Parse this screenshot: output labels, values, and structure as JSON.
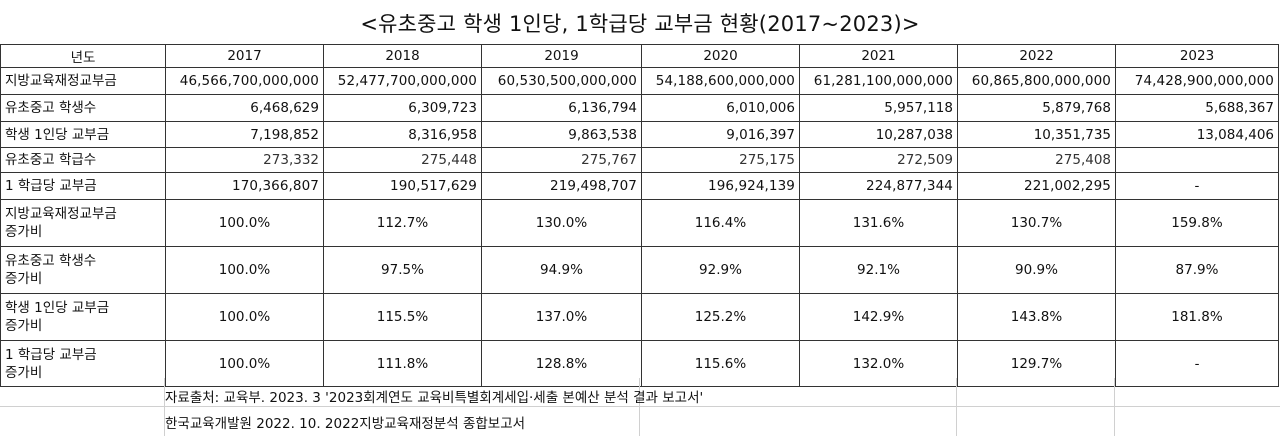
{
  "title": "<유초중고 학생 1인당, 1학급당 교부금 현황(2017~2023)>",
  "header": {
    "label": "년도",
    "years": [
      "2017",
      "2018",
      "2019",
      "2020",
      "2021",
      "2022",
      "2023"
    ]
  },
  "rows": [
    {
      "label": "지방교육재정교부금",
      "values": [
        "46,566,700,000,000",
        "52,477,700,000,000",
        "60,530,500,000,000",
        "54,188,600,000,000",
        "61,281,100,000,000",
        "60,865,800,000,000",
        "74,428,900,000,000"
      ]
    },
    {
      "label": "유초중고 학생수",
      "values": [
        "6,468,629",
        "6,309,723",
        "6,136,794",
        "6,010,006",
        "5,957,118",
        "5,879,768",
        "5,688,367"
      ]
    },
    {
      "label": "학생 1인당 교부금",
      "values": [
        "7,198,852",
        "8,316,958",
        "9,863,538",
        "9,016,397",
        "10,287,038",
        "10,351,735",
        "13,084,406"
      ]
    },
    {
      "label": "유초중고 학급수",
      "values": [
        "273,332",
        "275,448",
        "275,767",
        "275,175",
        "272,509",
        "275,408",
        ""
      ]
    },
    {
      "label": "1 학급당 교부금",
      "values": [
        "170,366,807",
        "190,517,629",
        "219,498,707",
        "196,924,139",
        "224,877,344",
        "221,002,295",
        "-"
      ]
    },
    {
      "label_line1": "지방교육재정교부금",
      "label_line2": "증가비",
      "values": [
        "100.0%",
        "112.7%",
        "130.0%",
        "116.4%",
        "131.6%",
        "130.7%",
        "159.8%"
      ]
    },
    {
      "label_line1": "유초중고 학생수",
      "label_line2": "증가비",
      "values": [
        "100.0%",
        "97.5%",
        "94.9%",
        "92.9%",
        "92.1%",
        "90.9%",
        "87.9%"
      ]
    },
    {
      "label_line1": "학생 1인당 교부금",
      "label_line2": "증가비",
      "values": [
        "100.0%",
        "115.5%",
        "137.0%",
        "125.2%",
        "142.9%",
        "143.8%",
        "181.8%"
      ]
    },
    {
      "label_line1": "1 학급당 교부금",
      "label_line2": "증가비",
      "values": [
        "100.0%",
        "111.8%",
        "128.8%",
        "115.6%",
        "132.0%",
        "129.7%",
        "-"
      ]
    }
  ],
  "notes": {
    "line1": "자료출처: 교육부. 2023. 3 '2023회계연도 교육비특별회계세입·세출 본예산 분석 결과 보고서'",
    "line2": "한국교육개발원 2022. 10. 2022지방교육재정분석 종합보고서"
  }
}
